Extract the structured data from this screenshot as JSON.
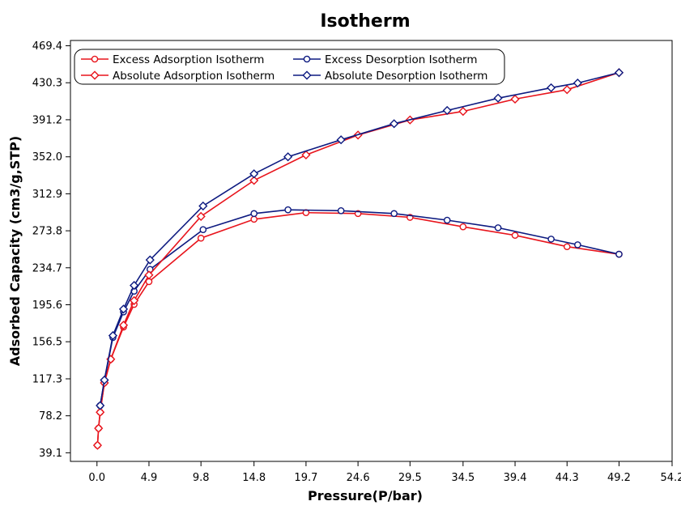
{
  "chart_data": {
    "type": "line",
    "title": "Isotherm",
    "xlabel": "Pressure(P/bar)",
    "ylabel": "Adsorbed Capacity (cm3/g,STP)",
    "xlim": [
      -2.5,
      54.2
    ],
    "ylim": [
      30,
      475
    ],
    "x_ticks": [
      "0.0",
      "4.9",
      "9.8",
      "14.8",
      "19.7",
      "24.6",
      "29.5",
      "34.5",
      "39.4",
      "44.3",
      "49.2",
      "54.2"
    ],
    "x_tick_values": [
      0.0,
      4.9,
      9.8,
      14.8,
      19.7,
      24.6,
      29.5,
      34.5,
      39.4,
      44.3,
      49.2,
      54.2
    ],
    "y_ticks": [
      "39.1",
      "78.2",
      "117.3",
      "156.5",
      "195.6",
      "234.7",
      "273.8",
      "312.9",
      "352.0",
      "391.2",
      "430.3",
      "469.4"
    ],
    "y_tick_values": [
      39.1,
      78.2,
      117.3,
      156.5,
      195.6,
      234.7,
      273.8,
      312.9,
      352.0,
      391.2,
      430.3,
      469.4
    ],
    "grid": false,
    "legend_position": "top-left",
    "series": [
      {
        "name": "Excess Adsorption Isotherm",
        "marker": "circle",
        "color": "#e8141c",
        "x": [
          0.05,
          0.15,
          0.3,
          0.7,
          1.3,
          2.5,
          3.5,
          4.9,
          9.8,
          14.8,
          19.7,
          24.6,
          29.5,
          34.5,
          39.4,
          44.3,
          49.2
        ],
        "y": [
          47,
          65,
          82,
          113,
          138,
          172,
          196,
          220,
          266,
          286,
          293,
          292,
          288,
          278,
          269,
          257,
          249
        ]
      },
      {
        "name": "Excess Desorption Isotherm",
        "marker": "circle",
        "color": "#0d1a80",
        "x": [
          49.2,
          45.3,
          42.8,
          37.8,
          33.0,
          28.0,
          23.0,
          18.0,
          14.8,
          10.0,
          5.0,
          3.5,
          2.5,
          1.5,
          0.7,
          0.3
        ],
        "y": [
          249,
          259,
          265,
          277,
          285,
          292,
          295,
          296,
          292,
          275,
          233,
          210,
          188,
          161,
          115,
          89
        ]
      },
      {
        "name": "Absolute Adsorption Isotherm",
        "marker": "diamond",
        "color": "#e8141c",
        "x": [
          0.05,
          0.15,
          0.3,
          0.7,
          1.3,
          2.5,
          3.5,
          4.9,
          9.8,
          14.8,
          19.7,
          24.6,
          29.5,
          34.5,
          39.4,
          44.3,
          49.2
        ],
        "y": [
          47,
          65,
          82,
          113,
          138,
          174,
          200,
          227,
          289,
          327,
          354,
          375,
          391,
          400,
          413,
          423,
          441
        ]
      },
      {
        "name": "Absolute Desorption Isotherm",
        "marker": "diamond",
        "color": "#0d1a80",
        "x": [
          49.2,
          45.3,
          42.8,
          37.8,
          33.0,
          28.0,
          23.0,
          18.0,
          14.8,
          10.0,
          5.0,
          3.5,
          2.5,
          1.5,
          0.7,
          0.3
        ],
        "y": [
          441,
          430,
          425,
          414,
          401,
          387,
          370,
          352,
          334,
          300,
          243,
          216,
          191,
          163,
          116,
          89
        ]
      }
    ]
  }
}
